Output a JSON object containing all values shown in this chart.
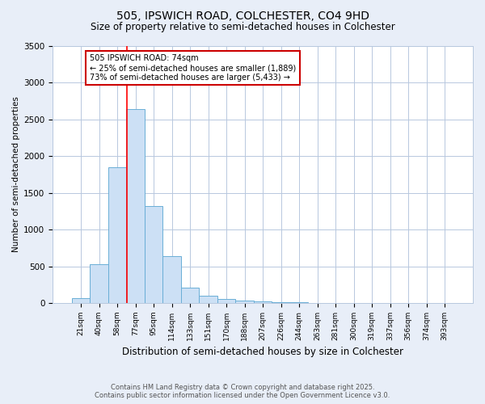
{
  "title1": "505, IPSWICH ROAD, COLCHESTER, CO4 9HD",
  "title2": "Size of property relative to semi-detached houses in Colchester",
  "xlabel": "Distribution of semi-detached houses by size in Colchester",
  "ylabel": "Number of semi-detached properties",
  "categories": [
    "21sqm",
    "40sqm",
    "58sqm",
    "77sqm",
    "95sqm",
    "114sqm",
    "133sqm",
    "151sqm",
    "170sqm",
    "188sqm",
    "207sqm",
    "226sqm",
    "244sqm",
    "263sqm",
    "281sqm",
    "300sqm",
    "319sqm",
    "337sqm",
    "356sqm",
    "374sqm",
    "393sqm"
  ],
  "values": [
    65,
    530,
    1850,
    2640,
    1320,
    640,
    215,
    100,
    55,
    35,
    20,
    12,
    8,
    5,
    3,
    2,
    2,
    1,
    1,
    1,
    1
  ],
  "bar_color": "#cce0f5",
  "bar_edgecolor": "#6aaed6",
  "red_line_x": 2.55,
  "annotation_text": "505 IPSWICH ROAD: 74sqm\n← 25% of semi-detached houses are smaller (1,889)\n73% of semi-detached houses are larger (5,433) →",
  "annotation_box_color": "#ffffff",
  "annotation_box_edgecolor": "#cc0000",
  "footer1": "Contains HM Land Registry data © Crown copyright and database right 2025.",
  "footer2": "Contains public sector information licensed under the Open Government Licence v3.0.",
  "ylim": [
    0,
    3500
  ],
  "bg_color": "#e8eef8",
  "plot_bg_color": "#ffffff",
  "grid_color": "#b8c8de"
}
